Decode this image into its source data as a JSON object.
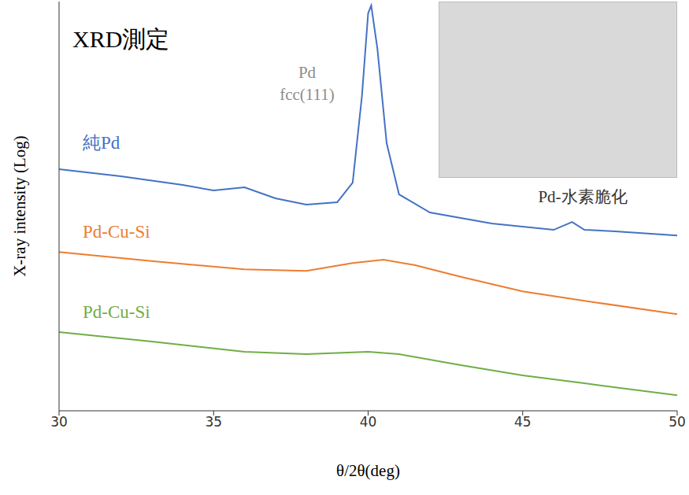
{
  "chart_data": {
    "type": "line",
    "title": "XRD測定",
    "x_label": "θ/2θ(deg)",
    "y_label": "X-ray intensity (Log)",
    "log": "y",
    "tick_labels": "x",
    "grid": false,
    "xlim": [
      30,
      50
    ],
    "xticks": [
      30,
      35,
      40,
      45,
      50
    ],
    "ylim": [
      1,
      1000
    ],
    "annotations": [
      {
        "text": "Pd fcc(111)",
        "color": "#8c8c8c"
      },
      {
        "text": "Pd-水素脆化",
        "color": "#333333"
      }
    ],
    "series": [
      {
        "name": "純Pd",
        "color": "#4472c4",
        "x": [
          30,
          32,
          34,
          35,
          36,
          37,
          38,
          39,
          39.5,
          39.8,
          40,
          40.1,
          40.3,
          40.6,
          41,
          42,
          44,
          46,
          46.6,
          47,
          48,
          50
        ],
        "values": [
          59.0,
          52.4,
          45.3,
          41.2,
          43.5,
          36.1,
          32.5,
          33.8,
          47.1,
          203,
          819,
          936,
          451,
          91.5,
          38.6,
          28.4,
          23.6,
          21.2,
          24.2,
          21.2,
          20.7,
          19.3
        ]
      },
      {
        "name": "Pd-Cu-Si",
        "color": "#ed7d31",
        "x": [
          30,
          33,
          36,
          38,
          39.5,
          40.5,
          41.5,
          43,
          45,
          47,
          50
        ],
        "values": [
          14.6,
          12.5,
          10.9,
          10.6,
          12.1,
          12.8,
          11.7,
          9.6,
          7.5,
          6.4,
          5.1
        ]
      },
      {
        "name": "Pd-Cu-Si",
        "color": "#70ad47",
        "x": [
          30,
          33,
          36,
          38,
          40,
          41,
          43,
          45,
          47,
          50
        ],
        "values": [
          3.78,
          3.22,
          2.71,
          2.6,
          2.71,
          2.6,
          2.16,
          1.82,
          1.59,
          1.3
        ]
      }
    ]
  }
}
